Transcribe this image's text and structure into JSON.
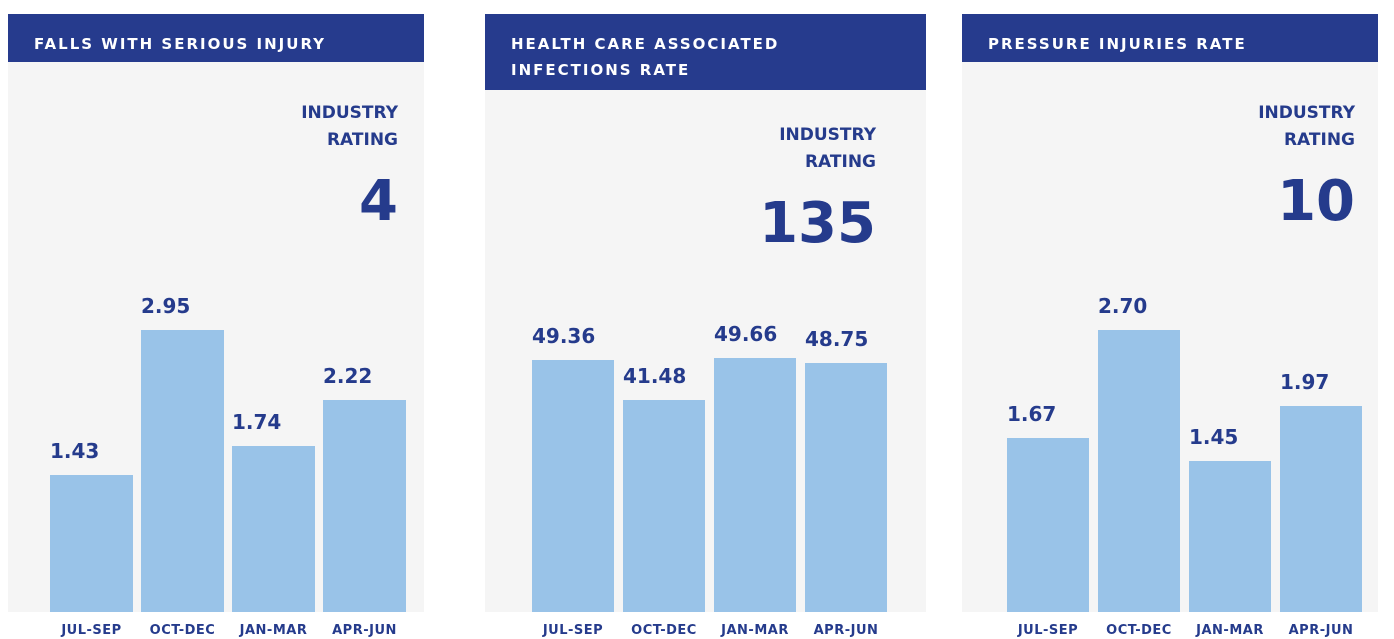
{
  "chart_data": [
    {
      "type": "bar",
      "title": "FALLS WITH SERIOUS INJURY",
      "rating_label": "INDUSTRY RATING",
      "rating": 4,
      "categories": [
        "JUL-SEP",
        "OCT-DEC",
        "JAN-MAR",
        "APR-JUN"
      ],
      "values": [
        1.43,
        2.95,
        1.74,
        2.22
      ],
      "value_labels": [
        "1.43",
        "2.95",
        "1.74",
        "2.22"
      ],
      "color": "#99c3e8"
    },
    {
      "type": "bar",
      "title": "HEALTH CARE ASSOCIATED INFECTIONS RATE",
      "rating_label": "INDUSTRY RATING",
      "rating": 135,
      "categories": [
        "JUL-SEP",
        "OCT-DEC",
        "JAN-MAR",
        "APR-JUN"
      ],
      "values": [
        49.36,
        41.48,
        49.66,
        48.75
      ],
      "value_labels": [
        "49.36",
        "41.48",
        "49.66",
        "48.75"
      ],
      "color": "#99c3e8"
    },
    {
      "type": "bar",
      "title": "PRESSURE INJURIES RATE",
      "rating_label": "INDUSTRY RATING",
      "rating": 10,
      "categories": [
        "JUL-SEP",
        "OCT-DEC",
        "JAN-MAR",
        "APR-JUN"
      ],
      "values": [
        1.67,
        2.7,
        1.45,
        1.97
      ],
      "value_labels": [
        "1.67",
        "2.70",
        "1.45",
        "1.97"
      ],
      "color": "#99c3e8"
    }
  ]
}
